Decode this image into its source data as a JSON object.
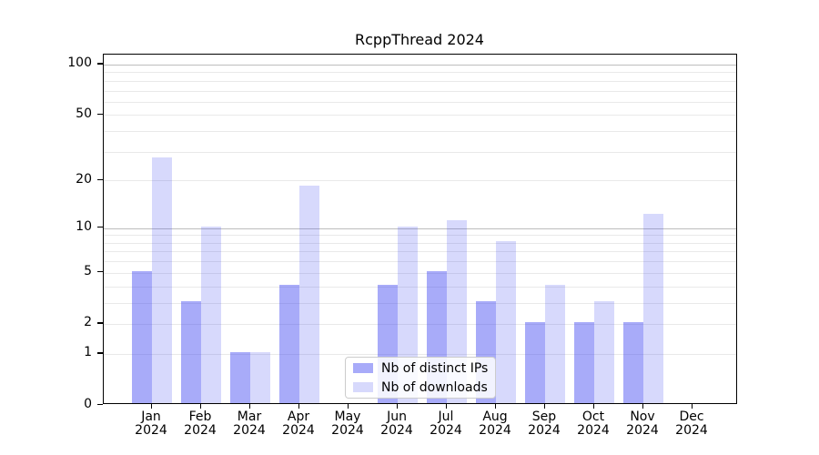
{
  "chart_data": {
    "type": "bar",
    "title": "RcppThread 2024",
    "categories": [
      "Jan 2024",
      "Feb 2024",
      "Mar 2024",
      "Apr 2024",
      "May 2024",
      "Jun 2024",
      "Jul 2024",
      "Aug 2024",
      "Sep 2024",
      "Oct 2024",
      "Nov 2024",
      "Dec 2024"
    ],
    "x_tick_line1": [
      "Jan",
      "Feb",
      "Mar",
      "Apr",
      "May",
      "Jun",
      "Jul",
      "Aug",
      "Sep",
      "Oct",
      "Nov",
      "Dec"
    ],
    "x_tick_line2": "2024",
    "series": [
      {
        "name": "Nb of distinct IPs",
        "color": "#464df2",
        "opacity": 0.47,
        "values": [
          5,
          3,
          1,
          4,
          0,
          4,
          5,
          3,
          2,
          2,
          2,
          0
        ]
      },
      {
        "name": "Nb of downloads",
        "color": "#464df2",
        "opacity": 0.215,
        "values": [
          27,
          10,
          1,
          18,
          0,
          10,
          11,
          8,
          4,
          3,
          12,
          0
        ]
      }
    ],
    "y_axis": {
      "scale": "log1p",
      "tick_values": [
        0,
        1,
        2,
        5,
        10,
        20,
        50,
        100
      ],
      "tick_labels": [
        "0",
        "1",
        "2",
        "5",
        "10",
        "20",
        "50",
        "100"
      ],
      "ylim": [
        0,
        115
      ],
      "grid": true
    },
    "gridlines": {
      "major_values": [
        10,
        100
      ],
      "minor_values": [
        1,
        2,
        3,
        4,
        5,
        6,
        7,
        8,
        9,
        20,
        30,
        40,
        50,
        60,
        70,
        80,
        90
      ],
      "major_color": "#bdbdbd",
      "minor_color": "#e9e9e9"
    },
    "legend": {
      "position": "lower center"
    }
  }
}
